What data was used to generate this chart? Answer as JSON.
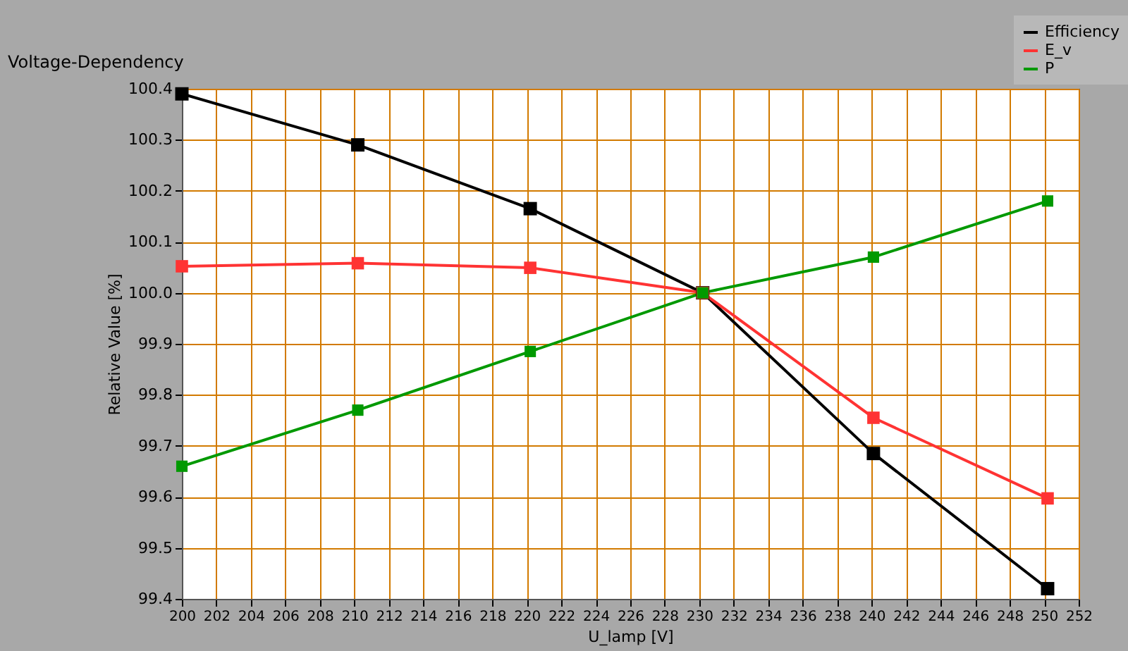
{
  "chart_data": {
    "type": "line",
    "title": "Voltage-Dependency",
    "xlabel": "U_lamp [V]",
    "ylabel": "Relative Value [%]",
    "x": [
      200,
      210.2,
      220.2,
      230.2,
      240.1,
      250.2
    ],
    "series": [
      {
        "name": "Efficiency",
        "color": "#000000",
        "values": [
          100.39,
          100.29,
          100.165,
          100.0,
          99.685,
          99.42
        ]
      },
      {
        "name": "E_v",
        "color": "#ff3333",
        "values": [
          100.052,
          100.058,
          100.049,
          100.0,
          99.755,
          99.597
        ]
      },
      {
        "name": "P",
        "color": "#009900",
        "values": [
          99.66,
          99.77,
          99.885,
          100.0,
          100.07,
          100.18
        ]
      }
    ],
    "xlim": [
      200,
      252
    ],
    "xticks": [
      200,
      202,
      204,
      206,
      208,
      210,
      212,
      214,
      216,
      218,
      220,
      222,
      224,
      226,
      228,
      230,
      232,
      234,
      236,
      238,
      240,
      242,
      244,
      246,
      248,
      250,
      252
    ],
    "ylim": [
      99.4,
      100.4
    ],
    "yticks": [
      {
        "value": 99.4,
        "label": "99.4"
      },
      {
        "value": 99.5,
        "label": "99.5"
      },
      {
        "value": 99.6,
        "label": "99.6"
      },
      {
        "value": 99.7,
        "label": "99.7"
      },
      {
        "value": 99.8,
        "label": "99.8"
      },
      {
        "value": 99.9,
        "label": "99.9"
      },
      {
        "value": 100.0,
        "label": "100.0"
      },
      {
        "value": 100.1,
        "label": "100.1"
      },
      {
        "value": 100.2,
        "label": "100.2"
      },
      {
        "value": 100.3,
        "label": "100.3"
      },
      {
        "value": 100.4,
        "label": "100.4"
      }
    ],
    "grid": true,
    "legend": "top right",
    "marker": "square",
    "line_style": "solid"
  }
}
